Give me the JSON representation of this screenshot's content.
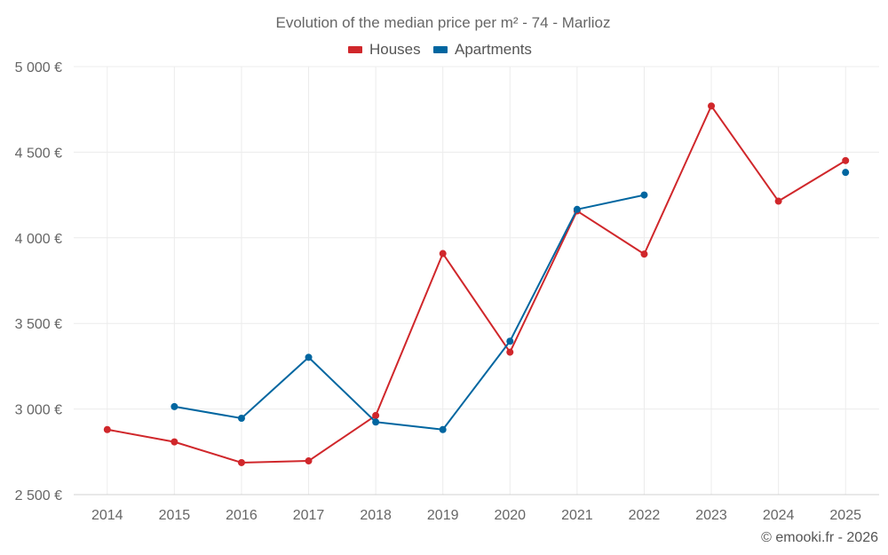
{
  "chart_data": {
    "type": "line",
    "title": "Evolution of the median price per m² - 74 - Marlioz",
    "categories": [
      "2014",
      "2015",
      "2016",
      "2017",
      "2018",
      "2019",
      "2020",
      "2021",
      "2022",
      "2023",
      "2024",
      "2025"
    ],
    "ylim": [
      2500,
      5000
    ],
    "yticks": [
      2500,
      3000,
      3500,
      4000,
      4500,
      5000
    ],
    "ytick_labels": [
      "2 500 €",
      "3 000 €",
      "3 500 €",
      "4 000 €",
      "4 500 €",
      "5 000 €"
    ],
    "xlabel": "",
    "ylabel": "",
    "grid": true,
    "legend_position": "top-center",
    "series": [
      {
        "name": "Houses",
        "color": "#d0272b",
        "values": [
          2880,
          2808,
          2687,
          2697,
          2962,
          3908,
          3332,
          4157,
          3905,
          4770,
          4214,
          4451
        ]
      },
      {
        "name": "Apartments",
        "color": "#0066a0",
        "values": [
          null,
          3014,
          2946,
          3302,
          2924,
          2880,
          3396,
          4166,
          4250,
          null,
          null,
          4382
        ]
      }
    ],
    "credit": "© emooki.fr - 2026"
  }
}
